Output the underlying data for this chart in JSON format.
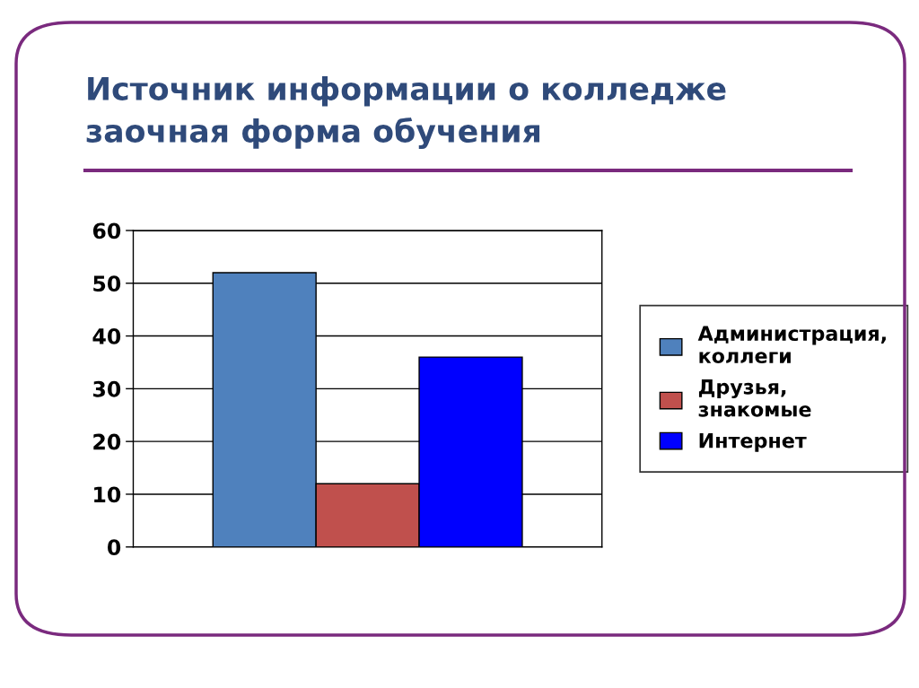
{
  "chart_data": {
    "type": "bar",
    "title": "Источник информации о колледже\nзаочная форма обучения",
    "categories": [
      null
    ],
    "series": [
      {
        "name": "Администрация, коллеги",
        "color": "#4f81bd",
        "values": [
          52
        ]
      },
      {
        "name": "Друзья, знакомые",
        "color": "#c0504d",
        "values": [
          12
        ]
      },
      {
        "name": "Интернет",
        "color": "#0000ff",
        "values": [
          36
        ]
      }
    ],
    "ylim": [
      0,
      60
    ],
    "yticks": [
      0,
      10,
      20,
      30,
      40,
      50,
      60
    ],
    "grid": "y",
    "legend": "right"
  }
}
